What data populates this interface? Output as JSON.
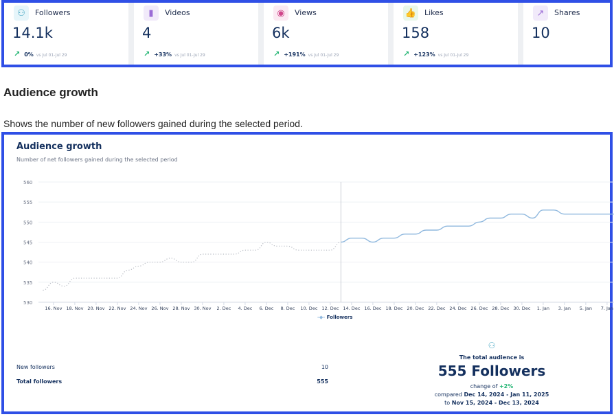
{
  "kpis": [
    {
      "label": "Followers",
      "value": "14.1k",
      "change": "0%",
      "vs": "vs Jul 01-Jul 29",
      "icon": "users-icon",
      "color": "#e6f5fa"
    },
    {
      "label": "Videos",
      "value": "4",
      "change": "+33%",
      "vs": "vs Jul 01-Jul 29",
      "icon": "document-icon",
      "color": "#f1eafa"
    },
    {
      "label": "Views",
      "value": "6k",
      "change": "+191%",
      "vs": "vs Jul 01-Jul 29",
      "icon": "eye-icon",
      "color": "#fbe9f2"
    },
    {
      "label": "Likes",
      "value": "158",
      "change": "+123%",
      "vs": "vs Jul 01-Jul 29",
      "icon": "thumbs-up-icon",
      "color": "#e9f7e9"
    },
    {
      "label": "Shares",
      "value": "10",
      "icon": "share-icon",
      "color": "#f1eafa"
    }
  ],
  "section": {
    "title": "Audience growth",
    "description": "Shows the number of new followers gained during the selected period."
  },
  "card": {
    "title": "Audience growth",
    "subtitle": "Number of net followers gained during the selected period"
  },
  "chart_data": {
    "type": "line",
    "yticks": [
      530,
      535,
      540,
      545,
      550,
      555,
      560
    ],
    "ylim": [
      530,
      560
    ],
    "grid": true,
    "xticks": [
      "16. Nov",
      "18. Nov",
      "20. Nov",
      "22. Nov",
      "24. Nov",
      "26. Nov",
      "28. Nov",
      "30. Nov",
      "2. Dec",
      "4. Dec",
      "6. Dec",
      "8. Dec",
      "10. Dec",
      "12. Dec",
      "14. Dec",
      "16. Dec",
      "18. Dec",
      "20. Dec",
      "22. Dec",
      "24. Dec",
      "26. Dec",
      "28. Dec",
      "30. Dec",
      "1. Jan",
      "3. Jan",
      "5. Jan",
      "7. Jan"
    ],
    "x_start": "2024-11-15",
    "divider": "2024-12-13",
    "legend": "bottom",
    "series": [
      {
        "name": "Followers",
        "style": "solid",
        "color": "#8fb8de",
        "start": "2024-12-13",
        "values": [
          545,
          546,
          546,
          545,
          546,
          546,
          547,
          547,
          548,
          548,
          549,
          549,
          549,
          550,
          551,
          551,
          552,
          552,
          551,
          553,
          553,
          552,
          552,
          552,
          552,
          552,
          552
        ]
      },
      {
        "style": "dotted",
        "color": "#b8bcc4",
        "start": "2024-11-15",
        "values": [
          533,
          535,
          534,
          536,
          536,
          536,
          536,
          536,
          538,
          539,
          540,
          540,
          541,
          540,
          540,
          542,
          542,
          542,
          542,
          543,
          543,
          545,
          544,
          544,
          543,
          543,
          543,
          543,
          545
        ]
      }
    ]
  },
  "stats": [
    {
      "label": "New followers",
      "value": "10"
    },
    {
      "label": "Total followers",
      "value": "555"
    }
  ],
  "total": {
    "heading": "The total audience is",
    "value": "555 Followers",
    "change_prefix": "change of",
    "change": "+2%",
    "compared": "compared",
    "period": "Dec 14, 2024 - Jan 11, 2025",
    "to": "to",
    "prev_period": "Nov 15, 2024 - Dec 13, 2024"
  }
}
